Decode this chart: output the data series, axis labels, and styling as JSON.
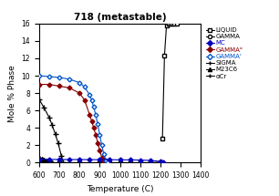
{
  "title": "718 (metastable)",
  "xlabel": "Temperature (C)",
  "ylabel": "Mole % Phase",
  "xlim": [
    600,
    1400
  ],
  "ylim": [
    0,
    16
  ],
  "xticks": [
    600,
    700,
    800,
    900,
    1000,
    1100,
    1200,
    1300,
    1400
  ],
  "yticks": [
    0,
    2,
    4,
    6,
    8,
    10,
    12,
    14,
    16
  ],
  "LIQUID": {
    "T": [
      1210,
      1220,
      1230,
      1240,
      1250,
      1260,
      1270,
      1280
    ],
    "val": [
      2.8,
      12.3,
      15.8,
      16.0,
      16.0,
      16.0,
      16.0,
      16.0
    ],
    "color": "#000000",
    "marker": "s",
    "markersize": 3,
    "markerfill": "white",
    "linestyle": "-"
  },
  "GAMMA": {
    "T": [
      600,
      700,
      800,
      900,
      950,
      1000,
      1050,
      1100,
      1150,
      1200,
      1210
    ],
    "val": [
      0.0,
      0.0,
      0.0,
      0.0,
      0.0,
      0.0,
      0.0,
      0.0,
      0.0,
      0.05,
      0.0
    ],
    "color": "#000000",
    "marker": "o",
    "markersize": 3,
    "markerfill": "white",
    "linestyle": "-"
  },
  "MC": {
    "T": [
      600,
      650,
      700,
      750,
      800,
      850,
      900,
      950,
      1000,
      1050,
      1100,
      1150,
      1200,
      1215
    ],
    "val": [
      0.38,
      0.37,
      0.37,
      0.36,
      0.36,
      0.35,
      0.34,
      0.34,
      0.33,
      0.32,
      0.3,
      0.26,
      0.15,
      0.0
    ],
    "color": "#0000bb",
    "marker": "D",
    "markersize": 2.5,
    "markerfill": "#0000bb",
    "linestyle": "-"
  },
  "GAMMA_pp": {
    "T": [
      600,
      650,
      700,
      750,
      800,
      825,
      850,
      860,
      870,
      880,
      890,
      900,
      910,
      920,
      930
    ],
    "val": [
      9.0,
      9.0,
      8.8,
      8.6,
      8.0,
      7.2,
      5.5,
      4.8,
      4.0,
      3.2,
      2.3,
      1.4,
      0.6,
      0.15,
      0.0
    ],
    "color": "#880000",
    "marker": "D",
    "markersize": 2.5,
    "markerfill": "#880000",
    "linestyle": "-"
  },
  "GAMMA_p": {
    "T": [
      600,
      650,
      700,
      750,
      800,
      825,
      850,
      860,
      870,
      880,
      890,
      900,
      910,
      920,
      930,
      940
    ],
    "val": [
      10.0,
      9.9,
      9.8,
      9.6,
      9.2,
      8.7,
      7.8,
      7.2,
      6.4,
      5.5,
      4.4,
      3.2,
      2.0,
      1.0,
      0.3,
      0.0
    ],
    "color": "#0055cc",
    "marker": "D",
    "markersize": 2.5,
    "markerfill": "white",
    "linestyle": "-"
  },
  "SIGMA": {
    "T": [
      600,
      625,
      650,
      665,
      680,
      695,
      710,
      720
    ],
    "val": [
      7.3,
      6.3,
      5.2,
      4.3,
      3.3,
      2.2,
      0.8,
      0.0
    ],
    "color": "#000000",
    "marker": "+",
    "markersize": 4,
    "markerfill": "#000000",
    "linestyle": "-"
  },
  "M23C6": {
    "T": [
      600,
      615,
      625,
      635,
      645,
      655,
      665
    ],
    "val": [
      0.55,
      0.45,
      0.35,
      0.25,
      0.15,
      0.06,
      0.0
    ],
    "color": "#000000",
    "marker": "^",
    "markersize": 3,
    "markerfill": "#000000",
    "linestyle": "-"
  },
  "alphaCr": {
    "T": [
      600,
      620,
      635,
      645,
      655
    ],
    "val": [
      0.38,
      0.25,
      0.12,
      0.04,
      0.0
    ],
    "color": "#000000",
    "marker": "+",
    "markersize": 3,
    "markerfill": "#000000",
    "linestyle": "-"
  },
  "legend_labels": [
    "LIQUID",
    "GAMMA",
    "MC",
    "GAMMA\"",
    "GAMMA'",
    "SIGMA",
    "M23C6",
    "αCr"
  ],
  "legend_colors": [
    "#000000",
    "#000000",
    "#0000bb",
    "#880000",
    "#0055cc",
    "#000000",
    "#000000",
    "#000000"
  ],
  "legend_markers": [
    "s",
    "o",
    "D",
    "D",
    "D",
    "+",
    "^",
    "+"
  ],
  "legend_markerfill": [
    "white",
    "white",
    "#0000bb",
    "#880000",
    "white",
    "#000000",
    "#000000",
    "#000000"
  ],
  "legend_text_colors": [
    "#000000",
    "#000000",
    "#0000bb",
    "#880000",
    "#0055cc",
    "#000000",
    "#000000",
    "#000000"
  ]
}
